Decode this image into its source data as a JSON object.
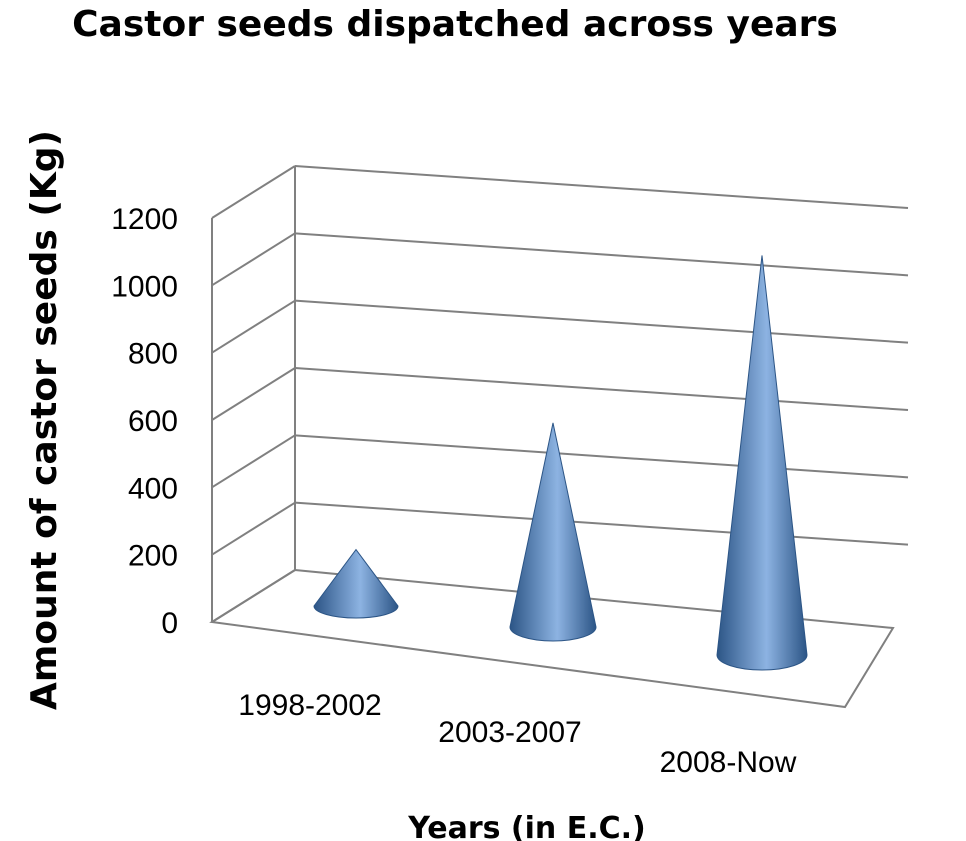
{
  "chart_data": {
    "type": "bar",
    "bar_shape": "cone",
    "three_d": true,
    "title": "Castor seeds dispatched across years",
    "xlabel": "Years (in E.C.)",
    "ylabel": "Amount of castor seeds (Kg)",
    "categories": [
      "1998-2002",
      "2003-2007",
      "2008-Now"
    ],
    "values": [
      150,
      580,
      1080
    ],
    "ylim": [
      0,
      1200
    ],
    "yticks": [
      0,
      200,
      400,
      600,
      800,
      1000,
      1200
    ],
    "grid": true,
    "legend": "none",
    "colors": {
      "cone": "#4f81bd",
      "cone_dark": "#2c5586",
      "cone_light": "#8db3e2"
    }
  }
}
